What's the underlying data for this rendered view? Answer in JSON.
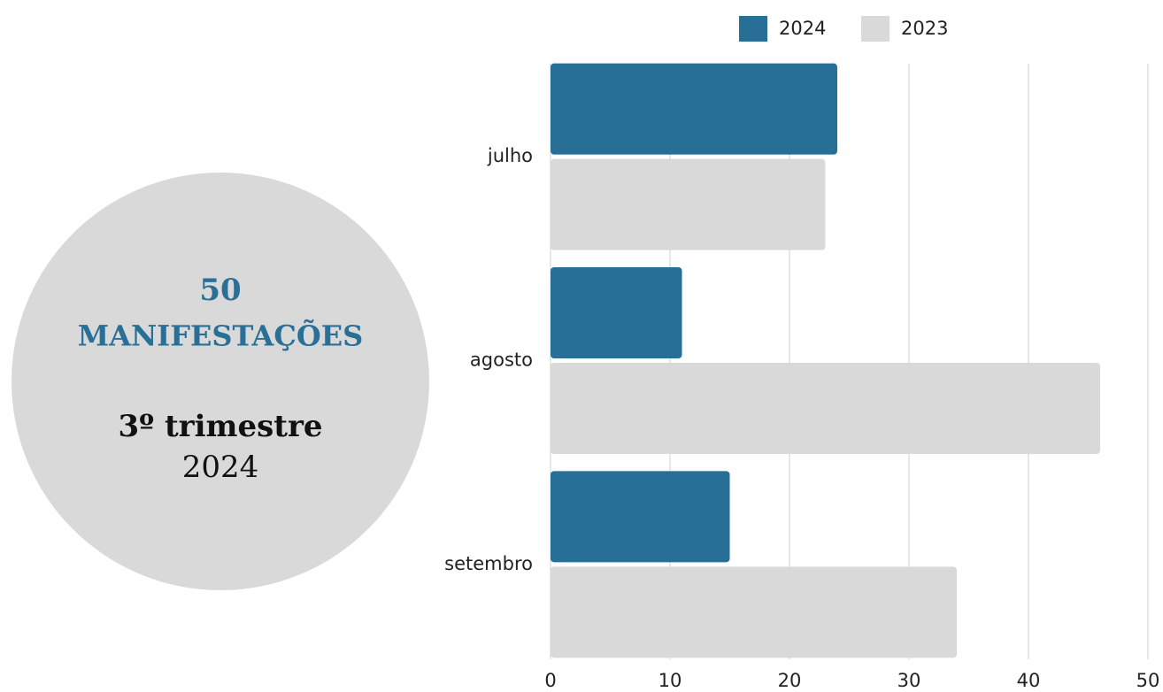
{
  "chart_data": {
    "type": "barh",
    "categories": [
      "julho",
      "agosto",
      "setembro"
    ],
    "series": [
      {
        "name": "2024",
        "color": "#276f96",
        "values": [
          24,
          11,
          15
        ]
      },
      {
        "name": "2023",
        "color": "#d9d9d9",
        "values": [
          23,
          46,
          34
        ]
      }
    ],
    "xlim": [
      0,
      50
    ],
    "xticks": [
      0,
      10,
      20,
      30,
      40,
      50
    ],
    "grid": true,
    "legend": "top"
  },
  "badge": {
    "count": 50,
    "label": "MANIFESTAÇÕES",
    "period": "3º trimestre",
    "year": "2024"
  }
}
